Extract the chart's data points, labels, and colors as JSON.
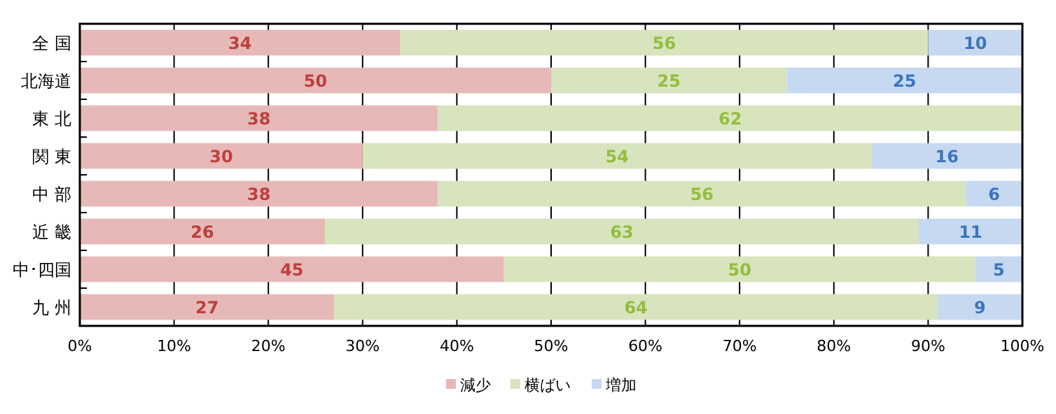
{
  "chart_data": {
    "type": "bar",
    "orientation": "horizontal",
    "stacked": true,
    "categories": [
      "全 国",
      "北海道",
      "東 北",
      "関 東",
      "中 部",
      "近 畿",
      "中･四国",
      "九 州"
    ],
    "series": [
      {
        "name": "減少",
        "color": "#e6b9b8",
        "values": [
          34,
          50,
          38,
          30,
          38,
          26,
          45,
          27
        ]
      },
      {
        "name": "横ばい",
        "color": "#d7e4bd",
        "values": [
          56,
          25,
          62,
          54,
          56,
          63,
          50,
          64
        ]
      },
      {
        "name": "増加",
        "color": "#c6d9f1",
        "values": [
          10,
          25,
          null,
          16,
          6,
          11,
          5,
          9
        ]
      }
    ],
    "xlim": [
      0,
      100
    ],
    "xticks": [
      {
        "value": 0,
        "label": "0%"
      },
      {
        "value": 10,
        "label": "10%"
      },
      {
        "value": 20,
        "label": "20%"
      },
      {
        "value": 30,
        "label": "30%"
      },
      {
        "value": 40,
        "label": "40%"
      },
      {
        "value": 50,
        "label": "50%"
      },
      {
        "value": 60,
        "label": "60%"
      },
      {
        "value": 70,
        "label": "70%"
      },
      {
        "value": 80,
        "label": "80%"
      },
      {
        "value": 90,
        "label": "90%"
      },
      {
        "value": 100,
        "label": "100%"
      }
    ],
    "grid": "x",
    "data_labels": true,
    "legend": "bottom"
  }
}
